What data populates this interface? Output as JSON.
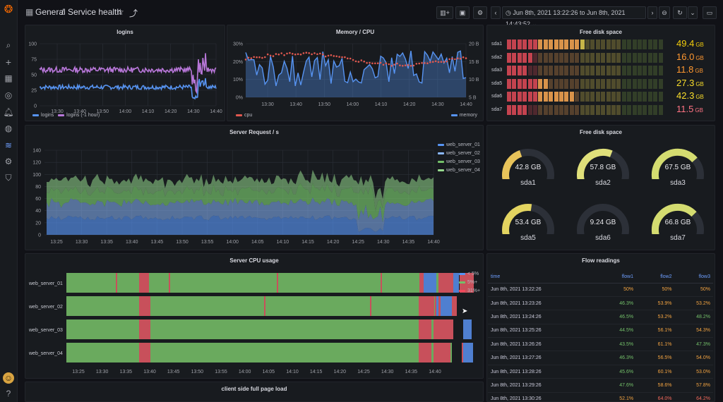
{
  "breadcrumb": {
    "folder": "General",
    "separator": "/",
    "dashboard": "Service health"
  },
  "timerange": "Jun 8th, 2021 13:22:26 to Jun 8th, 2021 14:43:52",
  "colors": {
    "green": "#73bf69",
    "yellow": "#fade2a",
    "red": "#f2495c",
    "blue": "#5794f2",
    "purple": "#b877d9",
    "orange": "#ff9830"
  },
  "icons": {
    "logo": "grafana-logo-icon",
    "search": "search-icon",
    "add": "plus-icon",
    "dashboards": "dashboards-icon",
    "explore": "compass-icon",
    "alerting": "bell-icon",
    "globe": "globe-icon",
    "connections": "connections-icon",
    "config": "gear-icon",
    "shield": "shield-icon",
    "help": "help-icon"
  },
  "panels": {
    "logins": {
      "title": "logins",
      "legend": [
        "logins",
        "logins (-1 hour)"
      ],
      "chart_data": {
        "type": "line",
        "title": "logins",
        "x": [
          "13:30",
          "13:40",
          "13:50",
          "14:00",
          "14:10",
          "14:20",
          "14:30",
          "14:40"
        ],
        "ylim": [
          0,
          100
        ],
        "yticks": [
          "0",
          "25",
          "50",
          "75",
          "100"
        ],
        "series": [
          {
            "name": "logins",
            "approx_level": 30
          },
          {
            "name": "logins (-1 hour)",
            "approx_level": 58
          }
        ]
      }
    },
    "memcpu": {
      "title": "Memory / CPU",
      "legend": [
        "cpu",
        "memory"
      ],
      "chart_data": {
        "type": "line",
        "x": [
          "13:30",
          "13:40",
          "13:50",
          "14:00",
          "14:10",
          "14:20",
          "14:30",
          "14:40"
        ],
        "yticks_left": [
          "0%",
          "10%",
          "20%",
          "30%"
        ],
        "yticks_right": [
          "5 B",
          "10 B",
          "15 B",
          "20 B"
        ],
        "series": [
          {
            "name": "cpu"
          },
          {
            "name": "memory"
          }
        ]
      }
    },
    "disk_bars": {
      "title": "Free disk space",
      "rows": [
        {
          "name": "sda1",
          "value": "49.4",
          "unit": "GB",
          "fraction": 0.49,
          "color": "#f2cc0c"
        },
        {
          "name": "sda2",
          "value": "16.0",
          "unit": "GB",
          "fraction": 0.16,
          "color": "#ff9830"
        },
        {
          "name": "sda3",
          "value": "11.8",
          "unit": "GB",
          "fraction": 0.12,
          "color": "#ff9830"
        },
        {
          "name": "sda5",
          "value": "27.3",
          "unit": "GB",
          "fraction": 0.27,
          "color": "#fade2a"
        },
        {
          "name": "sda6",
          "value": "42.3",
          "unit": "GB",
          "fraction": 0.42,
          "color": "#fade2a"
        },
        {
          "name": "sda7",
          "value": "11.5",
          "unit": "GB",
          "fraction": 0.12,
          "color": "#ff7383"
        }
      ]
    },
    "server_req": {
      "title": "Server Request / s",
      "legend": [
        "web_server_01",
        "web_server_02",
        "web_server_03",
        "web_server_04"
      ],
      "chart_data": {
        "type": "area",
        "x": [
          "13:25",
          "13:30",
          "13:35",
          "13:40",
          "13:45",
          "13:50",
          "13:55",
          "14:00",
          "14:05",
          "14:10",
          "14:15",
          "14:20",
          "14:25",
          "14:30",
          "14:35",
          "14:40"
        ],
        "ylim": [
          0,
          140
        ],
        "yticks": [
          "0",
          "20",
          "40",
          "60",
          "80",
          "100",
          "120",
          "140"
        ],
        "series": [
          {
            "name": "web_server_01"
          },
          {
            "name": "web_server_02"
          },
          {
            "name": "web_server_03"
          },
          {
            "name": "web_server_04"
          }
        ]
      }
    },
    "disk_gauges": {
      "title": "Free disk space",
      "gauges": [
        {
          "name": "sda1",
          "value": "42.8 GB",
          "fraction": 0.43,
          "color": "#e8c35a"
        },
        {
          "name": "sda2",
          "value": "57.8 GB",
          "fraction": 0.58,
          "color": "#e0e07a"
        },
        {
          "name": "sda3",
          "value": "67.5 GB",
          "fraction": 0.68,
          "color": "#d4dc70"
        },
        {
          "name": "sda5",
          "value": "53.4 GB",
          "fraction": 0.53,
          "color": "#e3d460"
        },
        {
          "name": "sda6",
          "value": "9.24 GB",
          "fraction": 0.09,
          "color": "#f2696b"
        },
        {
          "name": "sda7",
          "value": "66.8 GB",
          "fraction": 0.67,
          "color": "#d4dc70"
        }
      ]
    },
    "cpu_usage": {
      "title": "Server CPU usage",
      "rows": [
        "web_server_01",
        "web_server_02",
        "web_server_03",
        "web_server_04"
      ],
      "legend": [
        "< 5%",
        "5%+",
        "31%+"
      ],
      "x": [
        "13:25",
        "13:30",
        "13:35",
        "13:40",
        "13:45",
        "13:50",
        "13:55",
        "14:00",
        "14:05",
        "14:10",
        "14:15",
        "14:20",
        "14:25",
        "14:30",
        "14:35",
        "14:40"
      ]
    },
    "flow": {
      "title": "Flow readings",
      "headers": [
        "time",
        "flow1",
        "flow2",
        "flow3"
      ],
      "rows": [
        [
          "Jun 8th, 2021 13:22:26",
          "50%",
          "50%",
          "50%"
        ],
        [
          "Jun 8th, 2021 13:23:26",
          "46.3%",
          "53.9%",
          "53.2%"
        ],
        [
          "Jun 8th, 2021 13:24:26",
          "46.5%",
          "53.2%",
          "48.2%"
        ],
        [
          "Jun 8th, 2021 13:25:26",
          "44.5%",
          "56.1%",
          "54.3%"
        ],
        [
          "Jun 8th, 2021 13:26:26",
          "43.5%",
          "61.1%",
          "47.3%"
        ],
        [
          "Jun 8th, 2021 13:27:26",
          "46.3%",
          "56.5%",
          "54.0%"
        ],
        [
          "Jun 8th, 2021 13:28:26",
          "45.6%",
          "60.1%",
          "53.0%"
        ],
        [
          "Jun 8th, 2021 13:29:26",
          "47.6%",
          "58.6%",
          "57.8%"
        ],
        [
          "Jun 8th, 2021 13:30:26",
          "52.1%",
          "64.0%",
          "64.2%"
        ]
      ]
    },
    "page_load": {
      "title": "client side full page load"
    }
  }
}
